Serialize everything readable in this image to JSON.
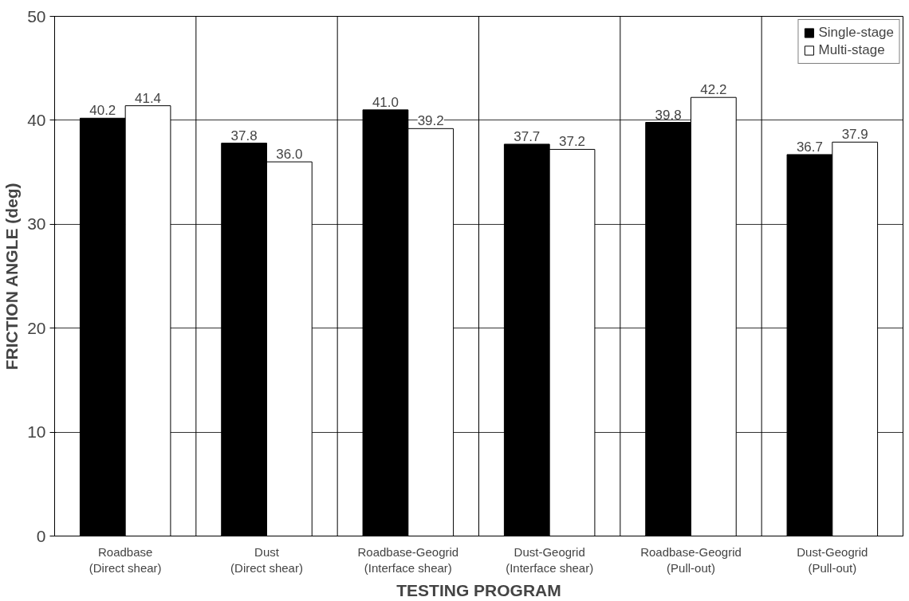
{
  "chart_data": {
    "type": "bar",
    "xlabel": "TESTING PROGRAM",
    "ylabel": "FRICTION ANGLE (deg)",
    "categories": [
      "Roadbase\n(Direct shear)",
      "Dust\n(Direct shear)",
      "Roadbase-Geogrid\n(Interface shear)",
      "Dust-Geogrid\n(Interface shear)",
      "Roadbase-Geogrid\n(Pull-out)",
      "Dust-Geogrid\n(Pull-out)"
    ],
    "series": [
      {
        "name": "Single-stage",
        "color": "#000000",
        "values": [
          40.2,
          37.8,
          41.0,
          37.7,
          39.8,
          36.7
        ],
        "value_labels": [
          "40.2",
          "37.8",
          "41.0",
          "37.7",
          "39.8",
          "36.7"
        ]
      },
      {
        "name": "Multi-stage",
        "color": "#ffffff",
        "values": [
          41.4,
          36.0,
          39.2,
          37.2,
          42.2,
          37.9
        ],
        "value_labels": [
          "41.4",
          "36.0",
          "39.2",
          "37.2",
          "42.2",
          "37.9"
        ]
      }
    ],
    "ylim": [
      0,
      50
    ],
    "yticks": [
      0,
      10,
      20,
      30,
      40,
      50
    ],
    "grid": true,
    "legend": "top right"
  }
}
